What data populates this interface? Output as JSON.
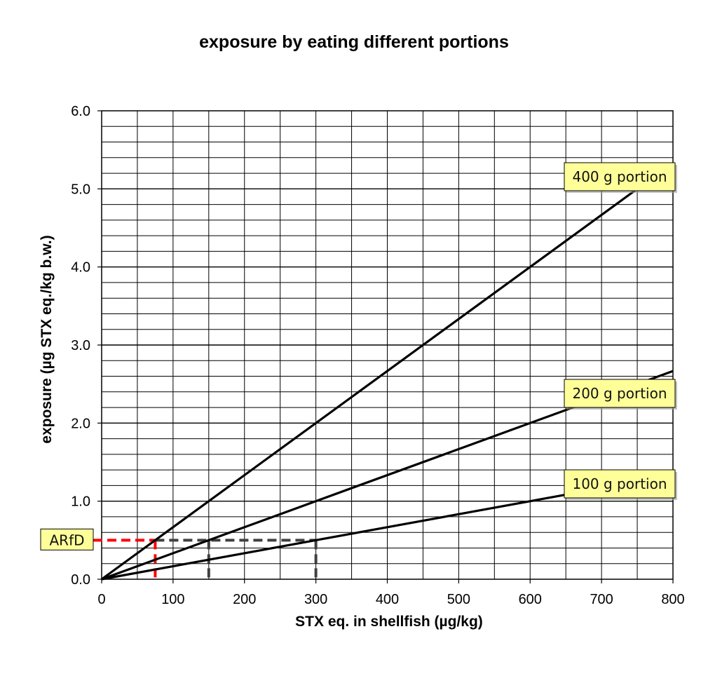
{
  "chart_data": {
    "type": "line",
    "title": "exposure by eating different portions",
    "xlabel": "STX eq. in shellfish  (µg/kg)",
    "ylabel": "exposure  (µg STX eq./kg b.w.)",
    "xlim": [
      0,
      800
    ],
    "ylim": [
      0,
      6
    ],
    "x_ticks": [
      0,
      100,
      200,
      300,
      400,
      500,
      600,
      700,
      800
    ],
    "x_tick_labels": [
      "0",
      "100",
      "200",
      "300",
      "400",
      "500",
      "600",
      "700",
      "800"
    ],
    "y_ticks": [
      0,
      1,
      2,
      3,
      4,
      5,
      6
    ],
    "y_tick_labels": [
      "0.0",
      "1.0",
      "2.0",
      "3.0",
      "4.0",
      "5.0",
      "6.0"
    ],
    "grid": true,
    "series": [
      {
        "name": "400 g portion",
        "x": [
          0,
          750
        ],
        "y": [
          0,
          5.0
        ],
        "color": "#000000"
      },
      {
        "name": "200 g portion",
        "x": [
          0,
          800
        ],
        "y": [
          0,
          2.667
        ],
        "color": "#000000"
      },
      {
        "name": "100 g portion",
        "x": [
          0,
          800
        ],
        "y": [
          0,
          1.333
        ],
        "color": "#000000"
      }
    ],
    "reference": {
      "label": "ARfD",
      "y": 0.5,
      "red_x": 75,
      "gray_x": [
        150,
        300
      ],
      "red_color": "#ff0000",
      "gray_color": "#404040"
    },
    "callout_color": "#ffff99"
  }
}
